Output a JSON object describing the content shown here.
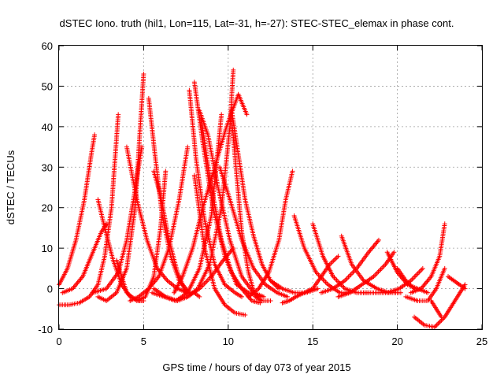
{
  "chart_data": {
    "type": "scatter",
    "title": "dSTEC Iono. truth (hil1, Lon=115, Lat=-31, h=-27): STEC-STEC_elemax in phase cont.",
    "xlabel": "GPS time / hours of day 073 of year 2015",
    "ylabel": "dSTEC  / TECUs",
    "xlim": [
      0,
      25
    ],
    "ylim": [
      -10,
      60
    ],
    "xticks": [
      0,
      5,
      10,
      15,
      20,
      25
    ],
    "yticks": [
      -10,
      0,
      10,
      20,
      30,
      40,
      50,
      60
    ],
    "grid": true,
    "marker": "plus",
    "color": "#ff0000",
    "series": [
      {
        "x": [
          0.0,
          0.5,
          1.0,
          1.5,
          1.9,
          2.1
        ],
        "y": [
          1.0,
          5.0,
          12.0,
          22.0,
          33.0,
          38.0
        ]
      },
      {
        "x": [
          0.0,
          0.6,
          1.2,
          1.8,
          2.3,
          2.7,
          3.1,
          3.5
        ],
        "y": [
          -4.0,
          -4.0,
          -3.5,
          -2.0,
          1.0,
          8.0,
          20.0,
          43.0
        ]
      },
      {
        "x": [
          0.2,
          0.8,
          1.4,
          2.0,
          2.5,
          2.8
        ],
        "y": [
          -1.0,
          0.0,
          3.0,
          9.0,
          14.0,
          16.0
        ]
      },
      {
        "x": [
          2.3,
          2.8,
          3.4,
          4.0,
          4.5,
          4.8,
          5.0
        ],
        "y": [
          -2.0,
          -3.0,
          -1.0,
          5.0,
          20.0,
          40.0,
          53.0
        ]
      },
      {
        "x": [
          2.3,
          2.7,
          3.2,
          3.7,
          4.2,
          4.7,
          5.0
        ],
        "y": [
          22.0,
          15.0,
          7.0,
          1.0,
          -2.0,
          -3.0,
          -3.0
        ]
      },
      {
        "x": [
          2.0,
          2.8,
          3.5,
          4.0,
          4.4,
          4.7,
          4.9
        ],
        "y": [
          -1.0,
          0.0,
          4.0,
          12.0,
          22.0,
          30.0,
          35.0
        ]
      },
      {
        "x": [
          4.2,
          4.7,
          5.3,
          5.9,
          6.5,
          7.1,
          7.6
        ],
        "y": [
          -3.0,
          -2.0,
          0.0,
          3.0,
          10.0,
          22.0,
          35.0
        ]
      },
      {
        "x": [
          5.3,
          5.7,
          6.1,
          6.6,
          7.1,
          7.7
        ],
        "y": [
          47.0,
          32.0,
          18.0,
          8.0,
          2.0,
          -1.0
        ]
      },
      {
        "x": [
          4.0,
          4.6,
          5.2,
          5.8,
          6.4,
          7.0,
          7.6
        ],
        "y": [
          35.0,
          22.0,
          12.0,
          5.0,
          2.0,
          0.0,
          -1.0
        ]
      },
      {
        "x": [
          3.4,
          4.0,
          4.6,
          5.1,
          5.6,
          6.0,
          6.3
        ],
        "y": [
          7.0,
          -1.0,
          -3.0,
          -2.0,
          3.0,
          15.0,
          29.0
        ]
      },
      {
        "x": [
          5.6,
          6.0,
          6.5,
          7.0,
          7.5,
          8.0,
          8.3
        ],
        "y": [
          29.0,
          23.0,
          12.0,
          4.0,
          -1.0,
          -1.0,
          -2.0
        ]
      },
      {
        "x": [
          5.5,
          6.2,
          6.9,
          7.6,
          8.3,
          9.0,
          9.6
        ],
        "y": [
          -1.0,
          -2.0,
          -3.0,
          -1.0,
          5.0,
          18.0,
          43.0
        ]
      },
      {
        "x": [
          7.7,
          8.1,
          8.6,
          9.2,
          9.8,
          10.4,
          10.8
        ],
        "y": [
          49.0,
          32.0,
          17.0,
          6.0,
          1.0,
          -1.0,
          -2.0
        ]
      },
      {
        "x": [
          8.0,
          8.5,
          9.1,
          9.8,
          10.5,
          11.2,
          11.9
        ],
        "y": [
          51.0,
          36.0,
          20.0,
          8.0,
          1.0,
          -1.0,
          -2.0
        ]
      },
      {
        "x": [
          8.3,
          8.8,
          9.4,
          10.1,
          10.8,
          11.5,
          12.1
        ],
        "y": [
          44.0,
          38.0,
          25.0,
          12.0,
          3.0,
          -1.0,
          -2.0
        ]
      },
      {
        "x": [
          6.8,
          7.3,
          7.9,
          8.5,
          9.2,
          9.9,
          10.6,
          11.1
        ],
        "y": [
          -1.0,
          3.0,
          10.0,
          20.0,
          30.0,
          40.0,
          48.0,
          43.0
        ]
      },
      {
        "x": [
          7.6,
          8.2,
          8.9,
          9.6,
          10.1,
          10.3
        ],
        "y": [
          -2.0,
          0.0,
          6.0,
          20.0,
          40.0,
          54.0
        ]
      },
      {
        "x": [
          8.4,
          9.0,
          9.6,
          10.2,
          10.8,
          11.4,
          11.9
        ],
        "y": [
          42.0,
          25.0,
          12.0,
          4.0,
          0.0,
          -3.0,
          -3.5
        ]
      },
      {
        "x": [
          10.2,
          10.6,
          11.0,
          11.5,
          12.0,
          12.5,
          13.0
        ],
        "y": [
          44.0,
          33.0,
          22.0,
          13.0,
          6.0,
          2.0,
          0.0
        ]
      },
      {
        "x": [
          9.5,
          10.1,
          10.8,
          11.5,
          12.2,
          12.9,
          13.5
        ],
        "y": [
          30.0,
          22.0,
          12.0,
          5.0,
          1.0,
          -1.0,
          -2.0
        ]
      },
      {
        "x": [
          10.2,
          10.5,
          10.8,
          11.2,
          11.6,
          12.0,
          12.5
        ],
        "y": [
          42.0,
          28.0,
          14.0,
          4.0,
          -2.0,
          -3.0,
          -3.0
        ]
      },
      {
        "x": [
          11.2,
          11.8,
          12.4,
          13.0,
          13.4,
          13.8
        ],
        "y": [
          -2.0,
          0.0,
          4.0,
          12.0,
          22.0,
          29.0
        ]
      },
      {
        "x": [
          8.0,
          8.6,
          9.2,
          9.8,
          10.4,
          11.0
        ],
        "y": [
          28.0,
          10.0,
          0.0,
          -4.0,
          -6.0,
          -6.5
        ]
      },
      {
        "x": [
          5.6,
          6.3,
          7.0,
          7.6,
          8.3,
          9.0,
          9.7,
          10.3
        ],
        "y": [
          0.0,
          -2.0,
          -3.0,
          -2.0,
          0.0,
          3.0,
          7.0,
          10.0
        ]
      },
      {
        "x": [
          13.9,
          14.5,
          15.2,
          15.9,
          16.6,
          17.2
        ],
        "y": [
          18.0,
          10.0,
          4.0,
          1.0,
          -1.0,
          -1.0
        ]
      },
      {
        "x": [
          15.0,
          15.6,
          16.2,
          16.9,
          17.6,
          18.3
        ],
        "y": [
          16.0,
          8.0,
          3.0,
          0.0,
          -1.0,
          -1.0
        ]
      },
      {
        "x": [
          16.7,
          17.3,
          18.0,
          18.8,
          19.5,
          20.2
        ],
        "y": [
          13.0,
          6.0,
          2.0,
          0.0,
          -1.0,
          -1.0
        ]
      },
      {
        "x": [
          14.5,
          15.0,
          15.5,
          16.0,
          16.5
        ],
        "y": [
          -1.0,
          0.0,
          3.0,
          6.0,
          8.0
        ]
      },
      {
        "x": [
          15.5,
          16.2,
          16.9,
          17.6,
          18.3,
          18.9
        ],
        "y": [
          -1.0,
          0.0,
          2.0,
          5.0,
          9.0,
          12.0
        ]
      },
      {
        "x": [
          16.5,
          17.2,
          17.9,
          18.6,
          19.3,
          19.8
        ],
        "y": [
          -2.0,
          -1.0,
          1.0,
          3.0,
          6.0,
          9.0
        ]
      },
      {
        "x": [
          19.4,
          20.0,
          20.6,
          21.2,
          21.8
        ],
        "y": [
          9.0,
          4.0,
          1.0,
          0.0,
          -1.0
        ]
      },
      {
        "x": [
          18.0,
          18.7,
          19.4,
          20.1,
          20.8,
          21.5
        ],
        "y": [
          -1.0,
          -1.0,
          -1.0,
          0.0,
          2.0,
          5.0
        ]
      },
      {
        "x": [
          20.0,
          20.5,
          21.0
        ],
        "y": [
          5.0,
          2.0,
          0.0
        ]
      },
      {
        "x": [
          20.8,
          21.4,
          22.0,
          22.5,
          22.8
        ],
        "y": [
          -1.0,
          0.0,
          3.0,
          8.0,
          16.0
        ]
      },
      {
        "x": [
          20.5,
          21.2,
          21.8,
          22.3,
          22.8
        ],
        "y": [
          -2.0,
          -3.0,
          -3.0,
          0.0,
          5.0
        ]
      },
      {
        "x": [
          21.0,
          21.6,
          22.2,
          22.8,
          23.4,
          24.0
        ],
        "y": [
          -7.0,
          -9.0,
          -9.5,
          -7.0,
          -3.0,
          1.0
        ]
      },
      {
        "x": [
          22.0,
          22.3,
          22.6
        ],
        "y": [
          -3.0,
          -5.0,
          -7.0
        ]
      },
      {
        "x": [
          23.0,
          23.5,
          24.0
        ],
        "y": [
          3.0,
          1.5,
          0.0
        ]
      },
      {
        "x": [
          13.2,
          13.6,
          14.0,
          14.5,
          15.0
        ],
        "y": [
          -3.5,
          -3.0,
          -2.0,
          -1.0,
          0.0
        ]
      },
      {
        "x": [
          12.5,
          13.2,
          13.9,
          14.6,
          15.3
        ],
        "y": [
          2.0,
          0.0,
          -1.0,
          -1.0,
          0.0
        ]
      }
    ]
  }
}
